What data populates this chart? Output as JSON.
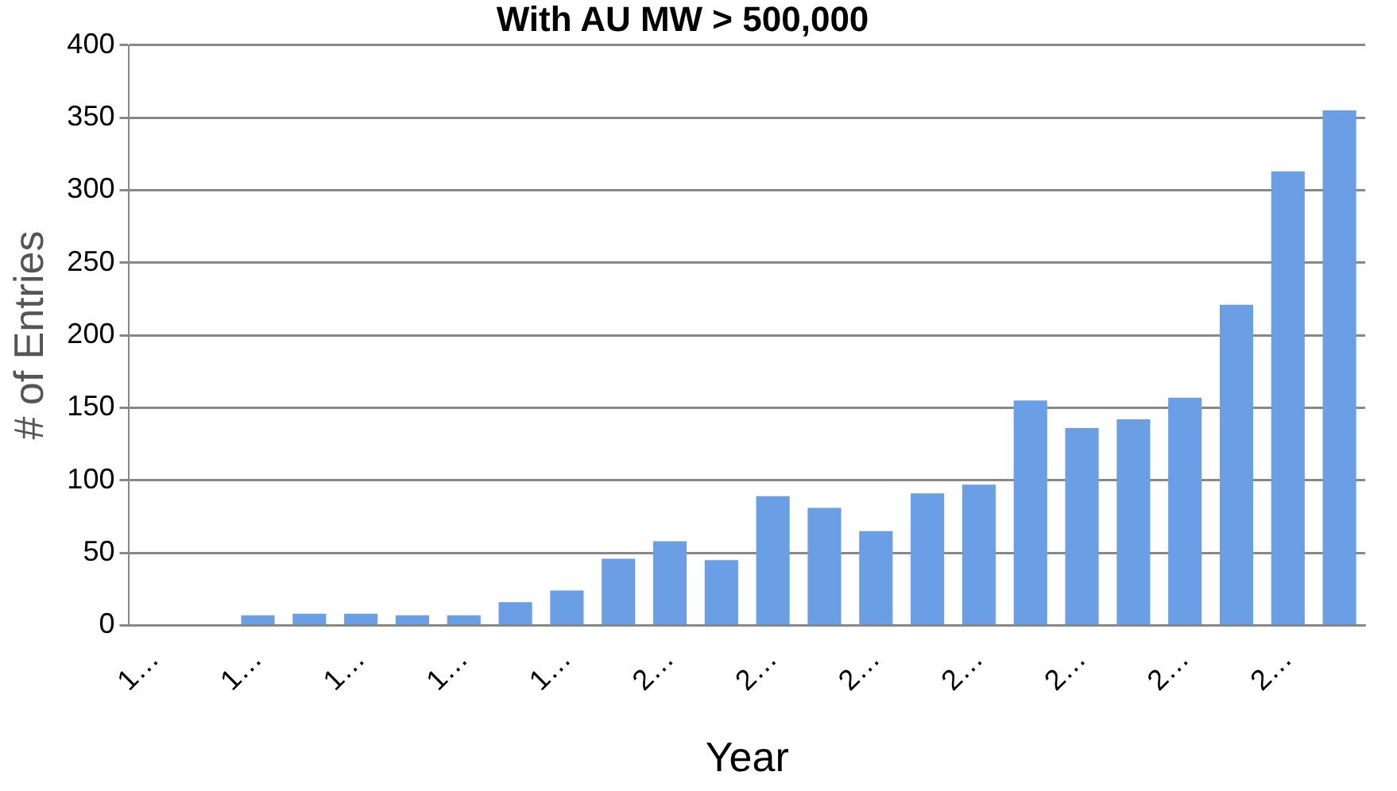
{
  "chart_data": {
    "type": "bar",
    "title": "With AU MW > 500,000",
    "xlabel": "Year",
    "ylabel": "# of Entries",
    "categories": [
      "1…",
      null,
      "1…",
      null,
      "1…",
      null,
      "1…",
      null,
      "1…",
      null,
      "2…",
      null,
      "2…",
      null,
      "2…",
      null,
      "2…",
      null,
      "2…",
      null,
      "2…",
      null,
      "2…",
      null
    ],
    "values": [
      0,
      0,
      7,
      8,
      8,
      7,
      7,
      16,
      24,
      46,
      58,
      45,
      89,
      81,
      65,
      91,
      97,
      155,
      136,
      142,
      157,
      221,
      313,
      355
    ],
    "color": "#6a9fe6",
    "ylim": [
      0,
      400
    ],
    "yticks": [
      0,
      50,
      100,
      150,
      200,
      250,
      300,
      350,
      400
    ],
    "grid": "y",
    "legend": false
  }
}
